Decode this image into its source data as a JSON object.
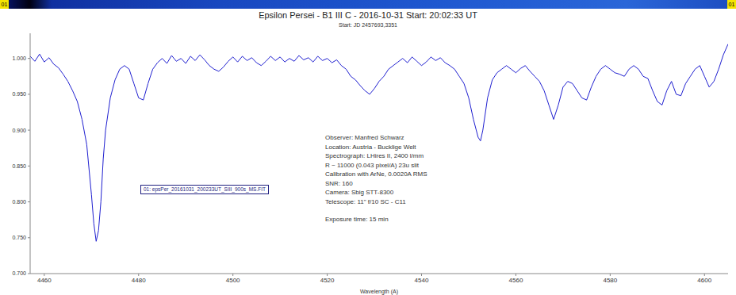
{
  "chart_data": {
    "type": "line",
    "title": "Epsilon Persei - B1 III C - 2016-10-31 Start: 20:02:33 UT",
    "subtitle": "Start: JD 2457693,3351",
    "x_label": "Wavelength (A)",
    "corner_labels": [
      "01",
      "01"
    ],
    "annotations": [
      "Observer: Manfred Schwarz",
      "Location: Austria - Bucklige Welt",
      "Spectrograph: LHires II, 2400 l/mm",
      "R ~ 11000 (0.043 pixel/A) 23u slit",
      "Calibration with ArNe, 0.0020A RMS",
      "SNR: 160",
      "Camera: Sbig STT-8300",
      "Telescope: 11\" f/10 SC - C11",
      "Exposure time: 15 min"
    ],
    "x": [
      4457,
      4458,
      4459,
      4460,
      4461,
      4462,
      4463,
      4464,
      4465,
      4466,
      4467,
      4468,
      4469,
      4470,
      4470.5,
      4471,
      4471.5,
      4472,
      4472.5,
      4473,
      4474,
      4475,
      4476,
      4477,
      4478,
      4479,
      4480,
      4481,
      4482,
      4483,
      4484,
      4485,
      4486,
      4487,
      4488,
      4489,
      4490,
      4491,
      4492,
      4493,
      4494,
      4495,
      4496,
      4497,
      4498,
      4499,
      4500,
      4501,
      4502,
      4503,
      4504,
      4505,
      4506,
      4507,
      4508,
      4509,
      4510,
      4511,
      4512,
      4513,
      4514,
      4515,
      4516,
      4517,
      4518,
      4519,
      4520,
      4521,
      4522,
      4523,
      4524,
      4525,
      4526,
      4527,
      4528,
      4529,
      4530,
      4531,
      4532,
      4533,
      4534,
      4535,
      4536,
      4537,
      4538,
      4539,
      4540,
      4541,
      4542,
      4543,
      4544,
      4545,
      4546,
      4547,
      4548,
      4549,
      4550,
      4551,
      4552,
      4552.5,
      4553,
      4554,
      4555,
      4556,
      4557,
      4558,
      4559,
      4560,
      4561,
      4562,
      4563,
      4564,
      4565,
      4566,
      4567,
      4568,
      4569,
      4570,
      4571,
      4572,
      4573,
      4574,
      4575,
      4576,
      4577,
      4578,
      4579,
      4580,
      4581,
      4582,
      4583,
      4584,
      4585,
      4586,
      4587,
      4588,
      4589,
      4590,
      4591,
      4592,
      4593,
      4594,
      4595,
      4596,
      4597,
      4598,
      4599,
      4600,
      4601,
      4602,
      4603,
      4604,
      4605
    ],
    "series": [
      {
        "name": "01: epsPer_20161031_200233UT_SIII_900s_MS.FIT",
        "color": "#1f1fd0",
        "values": [
          1.003,
          0.996,
          1.006,
          0.995,
          1.001,
          0.992,
          0.987,
          0.978,
          0.968,
          0.955,
          0.94,
          0.915,
          0.88,
          0.81,
          0.77,
          0.745,
          0.76,
          0.8,
          0.86,
          0.9,
          0.945,
          0.97,
          0.985,
          0.99,
          0.985,
          0.965,
          0.945,
          0.942,
          0.965,
          0.985,
          0.994,
          1.0,
          0.993,
          1.004,
          0.996,
          1.0,
          0.993,
          1.003,
          0.997,
          1.005,
          0.998,
          0.99,
          0.985,
          0.982,
          0.988,
          0.996,
          1.002,
          0.995,
          1.003,
          0.997,
          1.001,
          0.994,
          0.99,
          0.996,
          1.003,
          0.997,
          1.002,
          0.995,
          1.0,
          0.996,
          1.004,
          0.998,
          1.001,
          0.995,
          1.003,
          0.997,
          1.0,
          0.994,
          0.998,
          0.99,
          0.985,
          0.975,
          0.97,
          0.962,
          0.955,
          0.95,
          0.958,
          0.968,
          0.975,
          0.985,
          0.99,
          0.995,
          1.0,
          0.994,
          1.002,
          0.996,
          0.99,
          0.995,
          1.002,
          0.997,
          1.001,
          0.994,
          0.99,
          0.985,
          0.975,
          0.965,
          0.945,
          0.915,
          0.89,
          0.885,
          0.9,
          0.945,
          0.97,
          0.98,
          0.985,
          0.99,
          0.985,
          0.98,
          0.986,
          0.99,
          0.982,
          0.975,
          0.968,
          0.955,
          0.935,
          0.915,
          0.935,
          0.96,
          0.968,
          0.965,
          0.955,
          0.945,
          0.942,
          0.96,
          0.975,
          0.985,
          0.99,
          0.985,
          0.98,
          0.978,
          0.975,
          0.985,
          0.99,
          0.985,
          0.975,
          0.972,
          0.955,
          0.94,
          0.935,
          0.955,
          0.968,
          0.95,
          0.948,
          0.965,
          0.975,
          0.985,
          0.99,
          0.975,
          0.96,
          0.968,
          0.985,
          1.005,
          1.02
        ]
      }
    ],
    "xlim": [
      4457,
      4605
    ],
    "xticks": [
      4460,
      4480,
      4500,
      4520,
      4540,
      4560,
      4580,
      4600
    ],
    "ylim": [
      0.7,
      1.035
    ],
    "yticks": [
      {
        "value": 0.7,
        "label": "0.700"
      },
      {
        "value": 0.75,
        "label": "0.750"
      },
      {
        "value": 0.8,
        "label": "0.800"
      },
      {
        "value": 0.85,
        "label": "0.850"
      },
      {
        "value": 0.9,
        "label": "0.900"
      },
      {
        "value": 0.95,
        "label": "0.950"
      },
      {
        "value": 1.0,
        "label": "1.000"
      }
    ],
    "grid": false
  }
}
